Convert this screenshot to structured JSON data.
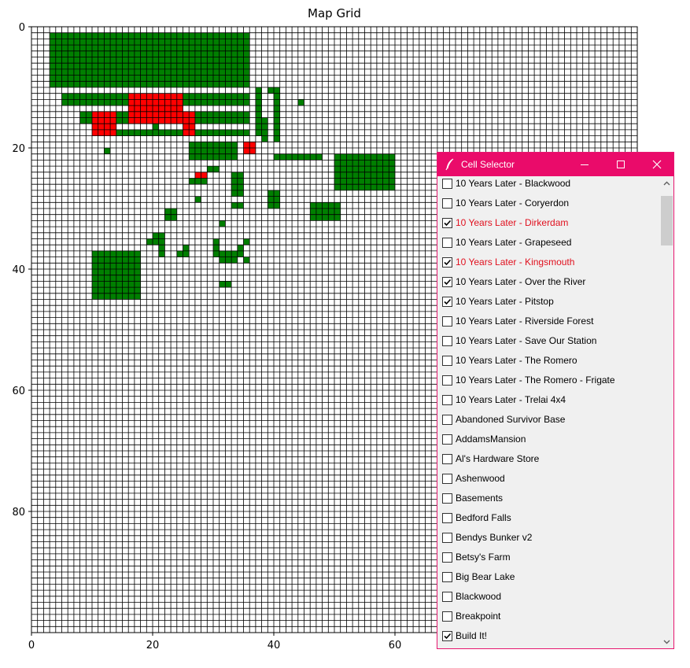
{
  "chart_data": {
    "type": "heatmap",
    "title": "Map Grid",
    "xlim": [
      0,
      100
    ],
    "ylim": [
      0,
      100
    ],
    "y_inverted": true,
    "x_ticks": [
      0,
      20,
      40,
      60
    ],
    "y_ticks": [
      0,
      20,
      40,
      60,
      80
    ],
    "grid": true,
    "colors": {
      "loaded": "#007f00",
      "selected": "#ff0000",
      "empty": "#ffffff"
    },
    "green_rects": [
      [
        3,
        1,
        36,
        10
      ],
      [
        5,
        11,
        36,
        13
      ],
      [
        8,
        14,
        36,
        16
      ],
      [
        10,
        17,
        36,
        18
      ],
      [
        26,
        19,
        34,
        22
      ],
      [
        38,
        15,
        39,
        19
      ],
      [
        37,
        10,
        38,
        18
      ],
      [
        39,
        10,
        40,
        11
      ],
      [
        40,
        10,
        41,
        19
      ],
      [
        10,
        14,
        11,
        17
      ],
      [
        17,
        17,
        18,
        18
      ],
      [
        20,
        16,
        21,
        17
      ],
      [
        12,
        20,
        13,
        21
      ],
      [
        44,
        12,
        45,
        13
      ],
      [
        40,
        21,
        44,
        22
      ],
      [
        44,
        21,
        46,
        22
      ],
      [
        46,
        21,
        48,
        22
      ],
      [
        50,
        21,
        60,
        27
      ],
      [
        29,
        23,
        31,
        24
      ],
      [
        26,
        25,
        29,
        26
      ],
      [
        33,
        24,
        35,
        28
      ],
      [
        39,
        27,
        41,
        30
      ],
      [
        33,
        29,
        35,
        30
      ],
      [
        27,
        28,
        28,
        29
      ],
      [
        22,
        30,
        24,
        32
      ],
      [
        31,
        32,
        32,
        33
      ],
      [
        46,
        29,
        51,
        32
      ],
      [
        20,
        34,
        22,
        35
      ],
      [
        19,
        35,
        22,
        36
      ],
      [
        21,
        36,
        22,
        38
      ],
      [
        25,
        36,
        26,
        38
      ],
      [
        24,
        37,
        25,
        38
      ],
      [
        30,
        35,
        31,
        36
      ],
      [
        30,
        36,
        31,
        38
      ],
      [
        31,
        37,
        35,
        38
      ],
      [
        35,
        35,
        36,
        36
      ],
      [
        34,
        36,
        35,
        38
      ],
      [
        35,
        38,
        36,
        39
      ],
      [
        31,
        38,
        34,
        39
      ],
      [
        10,
        37,
        18,
        45
      ],
      [
        31,
        42,
        33,
        43
      ]
    ],
    "red_rects": [
      [
        16,
        11,
        25,
        16
      ],
      [
        10,
        14,
        14,
        18
      ],
      [
        25,
        14,
        27,
        18
      ],
      [
        35,
        19,
        37,
        21
      ],
      [
        27,
        24,
        29,
        25
      ]
    ]
  },
  "window": {
    "title": "Cell Selector",
    "controls": [
      "minimize",
      "maximize",
      "close"
    ]
  },
  "cells": [
    {
      "label": "10 Years Later - Blackwood",
      "checked": false,
      "style": "normal"
    },
    {
      "label": "10 Years Later - Coryerdon",
      "checked": false,
      "style": "normal"
    },
    {
      "label": "10 Years Later - Dirkerdam",
      "checked": true,
      "style": "red"
    },
    {
      "label": "10 Years Later - Grapeseed",
      "checked": false,
      "style": "normal"
    },
    {
      "label": "10 Years Later - Kingsmouth",
      "checked": true,
      "style": "red"
    },
    {
      "label": "10 Years Later - Over the River",
      "checked": true,
      "style": "normal"
    },
    {
      "label": "10 Years Later - Pitstop",
      "checked": true,
      "style": "normal"
    },
    {
      "label": "10 Years Later - Riverside Forest",
      "checked": false,
      "style": "normal"
    },
    {
      "label": "10 Years Later - Save Our Station",
      "checked": false,
      "style": "normal"
    },
    {
      "label": "10 Years Later - The Romero",
      "checked": false,
      "style": "normal"
    },
    {
      "label": "10 Years Later - The Romero - Frigate",
      "checked": false,
      "style": "normal"
    },
    {
      "label": "10 Years Later - Trelai 4x4",
      "checked": false,
      "style": "normal"
    },
    {
      "label": "Abandoned Survivor Base",
      "checked": false,
      "style": "normal"
    },
    {
      "label": "AddamsMansion",
      "checked": false,
      "style": "normal"
    },
    {
      "label": "Al's Hardware Store",
      "checked": false,
      "style": "normal"
    },
    {
      "label": "Ashenwood",
      "checked": false,
      "style": "normal"
    },
    {
      "label": "Basements",
      "checked": false,
      "style": "normal"
    },
    {
      "label": "Bedford Falls",
      "checked": false,
      "style": "normal"
    },
    {
      "label": "Bendys Bunker v2",
      "checked": false,
      "style": "normal"
    },
    {
      "label": "Betsy's Farm",
      "checked": false,
      "style": "normal"
    },
    {
      "label": "Big Bear Lake",
      "checked": false,
      "style": "normal"
    },
    {
      "label": "Blackwood",
      "checked": false,
      "style": "normal"
    },
    {
      "label": "Breakpoint",
      "checked": false,
      "style": "normal"
    },
    {
      "label": "Build It!",
      "checked": true,
      "style": "normal"
    }
  ]
}
